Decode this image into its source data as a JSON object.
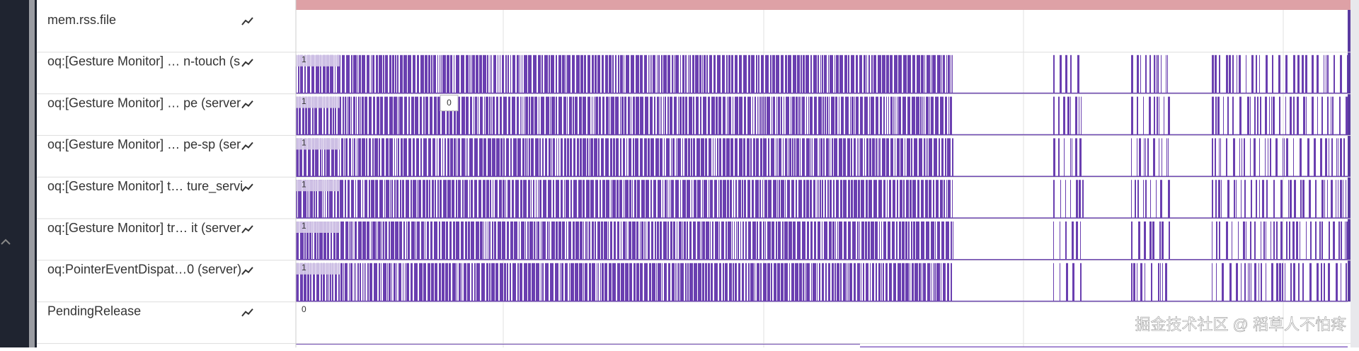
{
  "tracks": [
    {
      "name": "mem.rss.file"
    },
    {
      "name": "oq:[Gesture Monitor] …  n-touch (s",
      "label": "1"
    },
    {
      "name": "oq:[Gesture Monitor] …  pe (server",
      "label": "1"
    },
    {
      "name": "oq:[Gesture Monitor] …  pe-sp (ser",
      "label": "1"
    },
    {
      "name": "oq:[Gesture Monitor] t… ture_servi",
      "label": "1"
    },
    {
      "name": "oq:[Gesture Monitor] tr… it (server",
      "label": "1"
    },
    {
      "name": "oq:PointerEventDispat…0 (server)",
      "label": "1"
    },
    {
      "name": "PendingRelease",
      "label": "0"
    }
  ],
  "tooltip": "0",
  "watermark": "掘金技术社区 @ 稻草人不怕疼"
}
